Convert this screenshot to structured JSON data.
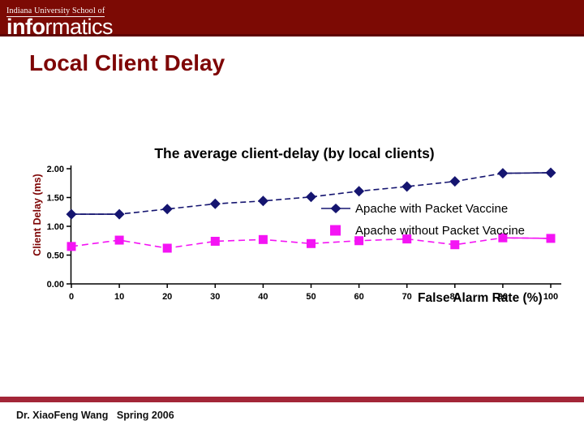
{
  "header": {
    "school_line": "Indiana University School of",
    "brand_bold": "info",
    "brand_rest": "rmatics"
  },
  "slide_title": "Local Client Delay",
  "footer_text": "Dr. XiaoFeng Wang   Spring 2006",
  "colors": {
    "banner": "#7c0a04",
    "banner_edge": "#5f0302",
    "slide_title": "#7e0505",
    "footer_bar": "#a32638",
    "series_with_vaccine": "#151570",
    "series_without_vaccine": "#f414f4",
    "axis": "#000000"
  },
  "chart_data": {
    "type": "line",
    "title": "The average client-delay (by local clients)",
    "xlabel": "False Alarm Rate (%)",
    "ylabel": "Client Delay (ms)",
    "x": [
      0,
      10,
      20,
      30,
      40,
      50,
      60,
      70,
      80,
      90,
      100
    ],
    "x_tick_labels": [
      "0",
      "10",
      "20",
      "30",
      "40",
      "50",
      "60",
      "70",
      "80",
      "90",
      "100"
    ],
    "y_ticks": [
      0,
      0.5,
      1,
      1.5,
      2
    ],
    "y_tick_labels": [
      "0.00",
      "0.50",
      "1.00",
      "1.50",
      "2.00"
    ],
    "xlim": [
      0,
      100
    ],
    "ylim": [
      0,
      2
    ],
    "grid": false,
    "legend_position": "inside-right",
    "series": [
      {
        "name": "Apache with Packet Vaccine",
        "marker": "diamond",
        "color": "#151570",
        "dash": "7 4",
        "solid_segments": [
          [
            0,
            1
          ],
          [
            9,
            10
          ]
        ],
        "values": [
          1.21,
          1.21,
          1.3,
          1.39,
          1.44,
          1.51,
          1.61,
          1.69,
          1.78,
          1.92,
          1.93
        ]
      },
      {
        "name": "Apache without Packet Vaccine",
        "marker": "square",
        "color": "#f414f4",
        "dash": "8 5",
        "solid_segments": [
          [
            9,
            10
          ]
        ],
        "values": [
          0.65,
          0.76,
          0.62,
          0.74,
          0.77,
          0.7,
          0.75,
          0.78,
          0.68,
          0.8,
          0.79
        ]
      }
    ]
  }
}
